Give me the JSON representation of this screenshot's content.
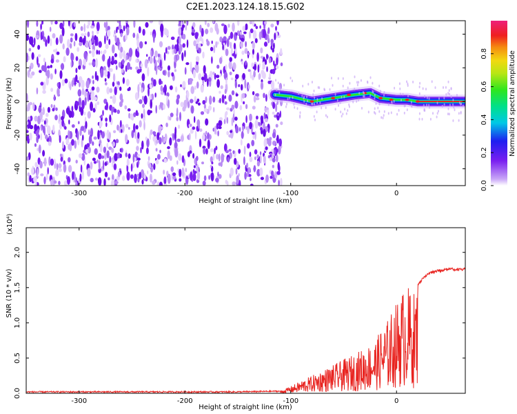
{
  "title": "C2E1.2023.124.18.15.G02",
  "colors": {
    "speckle": "#7a1ff0",
    "snr_line": "#e8231f",
    "axis": "#000000"
  },
  "chart_data": [
    {
      "type": "heatmap",
      "title": "C2E1.2023.124.18.15.G02",
      "xlabel": "Height of straight line (km)",
      "ylabel": "Frequency (Hz)",
      "xlim": [
        -350,
        65
      ],
      "ylim": [
        -50,
        48
      ],
      "xticks": [
        -300,
        -200,
        -100,
        0
      ],
      "yticks": [
        -40,
        -20,
        0,
        20,
        40
      ],
      "grid": false,
      "colorbar": {
        "label": "Normalized spectral amplitude",
        "range": [
          0.0,
          1.0
        ],
        "ticks": [
          "0.0",
          "0.2",
          "0.4",
          "0.6",
          "0.8"
        ],
        "colormap": "rainbow (violet-blue-cyan-green-yellow-red-magenta)"
      },
      "noise_region_x": [
        -350,
        -115
      ],
      "signal_ridge": {
        "x": [
          -115,
          -100,
          -80,
          -60,
          -40,
          -25,
          -15,
          0,
          10,
          20,
          40,
          65
        ],
        "frequency": [
          4,
          3,
          0,
          2,
          4,
          5,
          2,
          1,
          1,
          0,
          0,
          0
        ]
      }
    },
    {
      "type": "line",
      "xlabel": "Height of straight line (km)",
      "ylabel": "SNR (10 * v/v)",
      "y_multiplier": "(x10⁴)",
      "xlim": [
        -350,
        65
      ],
      "ylim": [
        0,
        2.35
      ],
      "xticks": [
        -300,
        -200,
        -100,
        0
      ],
      "yticks": [
        "0.0",
        "0.5",
        "1.0",
        "1.5",
        "2.0"
      ],
      "grid": false,
      "series": [
        {
          "x": [
            -350,
            -300,
            -250,
            -200,
            -150,
            -110,
            -100,
            -90,
            -80,
            -70,
            -60,
            -50,
            -40,
            -30,
            -20,
            -15,
            -10,
            -5,
            0,
            5,
            10,
            15,
            20,
            25,
            30,
            40,
            50,
            65
          ],
          "y": [
            0.02,
            0.02,
            0.02,
            0.02,
            0.02,
            0.03,
            0.1,
            0.18,
            0.25,
            0.33,
            0.4,
            0.48,
            0.56,
            0.65,
            0.75,
            0.9,
            1.0,
            1.15,
            1.3,
            1.45,
            1.55,
            1.4,
            1.55,
            1.65,
            1.72,
            1.76,
            1.78,
            1.78
          ]
        }
      ]
    }
  ]
}
